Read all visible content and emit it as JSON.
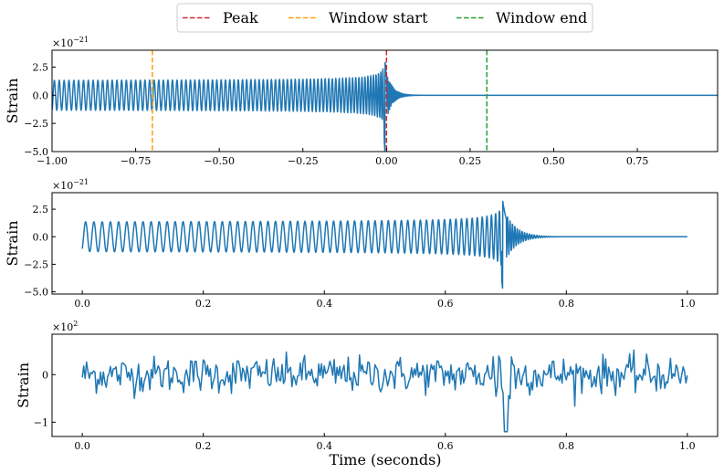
{
  "legend": {
    "entries": [
      {
        "label": "Peak",
        "color": "#d62728"
      },
      {
        "label": "Window start",
        "color": "#ff9f0e"
      },
      {
        "label": "Window end",
        "color": "#2ca02c"
      }
    ]
  },
  "xlabel_bottom": "Time (seconds)",
  "chart_data": [
    {
      "type": "line",
      "series": [
        {
          "color": "#1f77b4",
          "signal": "inspiral chirp then ringdown to flat"
        }
      ],
      "xlim": [
        -1.0,
        0.99
      ],
      "ylim": [
        -5.0,
        4.0
      ],
      "x_ticks": [
        -1.0,
        -0.75,
        -0.5,
        -0.25,
        0.0,
        0.25,
        0.5,
        0.75
      ],
      "x_tick_labels": [
        "−1.00",
        "−0.75",
        "−0.50",
        "−0.25",
        "0.00",
        "0.25",
        "0.50",
        "0.75"
      ],
      "y_ticks": [
        -5.0,
        -2.5,
        0.0,
        2.5
      ],
      "y_tick_labels": [
        "−5.0",
        "−2.5",
        "0.0",
        "2.5"
      ],
      "multiplier": {
        "base": "×10",
        "exp": "−21"
      },
      "ylabel": "Strain",
      "vlines": [
        {
          "x": 0.0,
          "name": "Peak",
          "color": "#d62728"
        },
        {
          "x": -0.7,
          "name": "Window start",
          "color": "#ff9f0e"
        },
        {
          "x": 0.3,
          "name": "Window end",
          "color": "#2ca02c"
        }
      ],
      "merger_x": -0.005,
      "grid": false
    },
    {
      "type": "line",
      "series": [
        {
          "color": "#1f77b4",
          "signal": "windowed chirp, peak near 0.70"
        }
      ],
      "xlim": [
        -0.05,
        1.05
      ],
      "ylim": [
        -5.2,
        4.0
      ],
      "x_ticks": [
        0.0,
        0.2,
        0.4,
        0.6,
        0.8,
        1.0
      ],
      "x_tick_labels": [
        "0.0",
        "0.2",
        "0.4",
        "0.6",
        "0.8",
        "1.0"
      ],
      "y_ticks": [
        -5.0,
        -2.5,
        0.0,
        2.5
      ],
      "y_tick_labels": [
        "−5.0",
        "−2.5",
        "0.0",
        "2.5"
      ],
      "multiplier": {
        "base": "×10",
        "exp": "−21"
      },
      "ylabel": "Strain",
      "merger_x": 0.695,
      "grid": false
    },
    {
      "type": "line",
      "series": [
        {
          "color": "#1f77b4",
          "signal": "whitened noisy strain, spike near 0.70"
        }
      ],
      "xlim": [
        -0.05,
        1.05
      ],
      "ylim": [
        -1.3,
        0.85
      ],
      "x_ticks": [
        0.0,
        0.2,
        0.4,
        0.6,
        0.8,
        1.0
      ],
      "x_tick_labels": [
        "0.0",
        "0.2",
        "0.4",
        "0.6",
        "0.8",
        "1.0"
      ],
      "y_ticks": [
        -1.0,
        0.0
      ],
      "y_tick_labels": [
        "−1",
        "0"
      ],
      "multiplier": {
        "base": "×10",
        "exp": "2"
      },
      "ylabel": "Strain",
      "merger_x": 0.7,
      "grid": false
    }
  ]
}
